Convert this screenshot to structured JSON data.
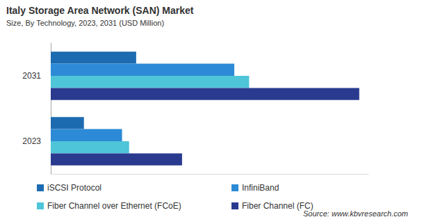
{
  "chart_data": {
    "type": "bar",
    "orientation": "horizontal",
    "title": "Italy Storage Area Network (SAN) Market",
    "subtitle": "Size, By Technology, 2023, 2031 (USD Million)",
    "source": "Source: www.kbvresearch.com",
    "categories": [
      "2031",
      "2023"
    ],
    "series": [
      {
        "name": "iSCSI Protocol",
        "color": "#1c6bb0",
        "values": [
          121,
          47
        ]
      },
      {
        "name": "InfiniBand",
        "color": "#2d8ad6",
        "values": [
          260,
          101
        ]
      },
      {
        "name": "Fiber Channel over Ethernet (FCoE)",
        "color": "#4ec5d8",
        "values": [
          281,
          111
        ]
      },
      {
        "name": "Fiber Channel (FC)",
        "color": "#2a3a8f",
        "values": [
          437,
          186
        ]
      }
    ],
    "xlim": [
      0,
      450
    ],
    "tick_labels": "y",
    "grid": false,
    "legend": "bottom"
  }
}
